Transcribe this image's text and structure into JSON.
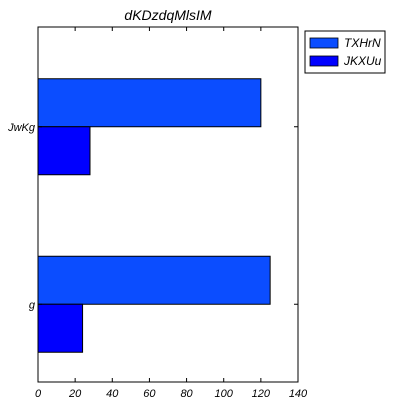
{
  "chart_data": {
    "type": "bar",
    "orientation": "horizontal",
    "title": "dKDzdqMlsIM",
    "xlabel": "",
    "ylabel": "",
    "categories": [
      "JwKg",
      "g"
    ],
    "series": [
      {
        "name": "TXHrN",
        "values": [
          120,
          125
        ],
        "color": "#0b4dff"
      },
      {
        "name": "JKXUu",
        "values": [
          28,
          24
        ],
        "color": "#0000ff"
      }
    ],
    "xlim": [
      0,
      140
    ],
    "xticks": [
      0,
      20,
      40,
      60,
      80,
      100,
      120,
      140
    ],
    "grid": false,
    "legend_position": "outside-top-right"
  }
}
